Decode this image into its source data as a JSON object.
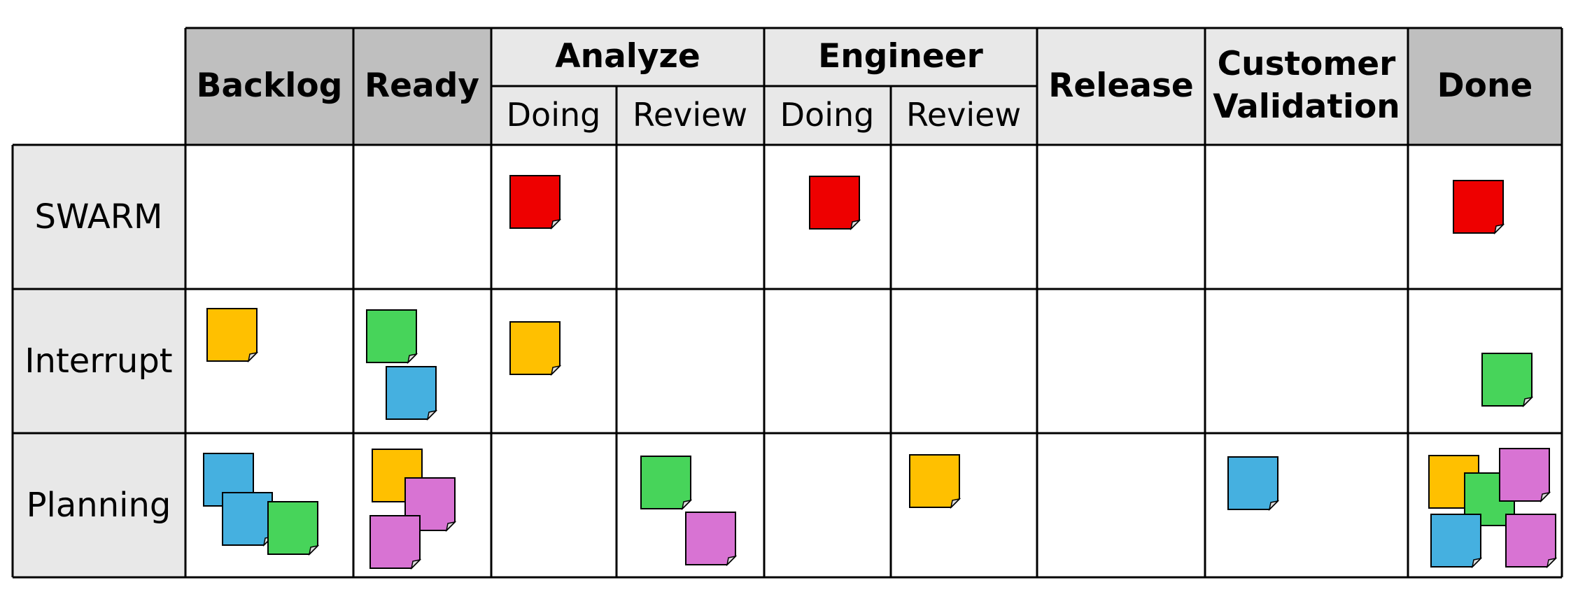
{
  "board": {
    "columns": {
      "backlog": "Backlog",
      "ready": "Ready",
      "analyze": "Analyze",
      "engineer": "Engineer",
      "release": "Release",
      "customer_validation_line1": "Customer",
      "customer_validation_line2": "Validation",
      "done": "Done"
    },
    "subcolumns": {
      "analyze_doing": "Doing",
      "analyze_review": "Review",
      "engineer_doing": "Doing",
      "engineer_review": "Review"
    },
    "rows": {
      "swarm": "SWARM",
      "interrupt": "Interrupt",
      "planning": "Planning"
    }
  },
  "colors": {
    "header_dark": "#bfbfbf",
    "header_light": "#e8e8e8",
    "row_header": "#e8e8e8",
    "sticky_red": "#ee0000",
    "sticky_yellow": "#ffc000",
    "sticky_green": "#47d45a",
    "sticky_blue": "#45b0e0",
    "sticky_pink": "#d873d3"
  },
  "stickies": [
    {
      "row": "SWARM",
      "column": "Analyze / Doing",
      "color": "red"
    },
    {
      "row": "SWARM",
      "column": "Engineer / Doing",
      "color": "red"
    },
    {
      "row": "SWARM",
      "column": "Done",
      "color": "red"
    },
    {
      "row": "Interrupt",
      "column": "Backlog",
      "color": "yellow"
    },
    {
      "row": "Interrupt",
      "column": "Ready",
      "color": "green"
    },
    {
      "row": "Interrupt",
      "column": "Ready",
      "color": "blue"
    },
    {
      "row": "Interrupt",
      "column": "Analyze / Doing",
      "color": "yellow"
    },
    {
      "row": "Interrupt",
      "column": "Done",
      "color": "green"
    },
    {
      "row": "Planning",
      "column": "Backlog",
      "color": "blue"
    },
    {
      "row": "Planning",
      "column": "Backlog",
      "color": "blue"
    },
    {
      "row": "Planning",
      "column": "Backlog",
      "color": "green"
    },
    {
      "row": "Planning",
      "column": "Ready",
      "color": "yellow"
    },
    {
      "row": "Planning",
      "column": "Ready",
      "color": "pink"
    },
    {
      "row": "Planning",
      "column": "Ready",
      "color": "pink"
    },
    {
      "row": "Planning",
      "column": "Analyze / Review",
      "color": "green"
    },
    {
      "row": "Planning",
      "column": "Analyze / Review",
      "color": "pink"
    },
    {
      "row": "Planning",
      "column": "Engineer / Review",
      "color": "yellow"
    },
    {
      "row": "Planning",
      "column": "Customer Validation",
      "color": "blue"
    },
    {
      "row": "Planning",
      "column": "Done",
      "color": "yellow"
    },
    {
      "row": "Planning",
      "column": "Done",
      "color": "green"
    },
    {
      "row": "Planning",
      "column": "Done",
      "color": "pink"
    },
    {
      "row": "Planning",
      "column": "Done",
      "color": "blue"
    },
    {
      "row": "Planning",
      "column": "Done",
      "color": "pink"
    }
  ]
}
